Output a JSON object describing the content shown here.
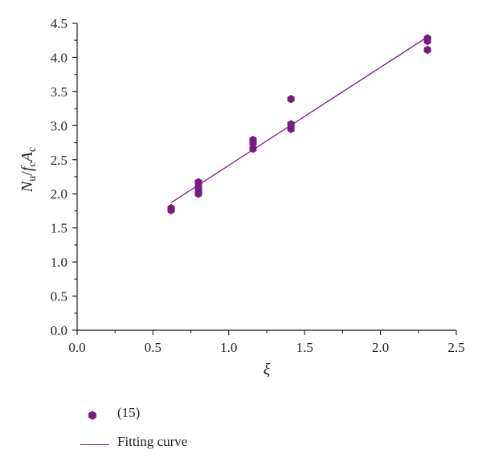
{
  "chart_data": {
    "type": "scatter",
    "xlabel": "ξ",
    "ylabel": {
      "main": "N",
      "sub_u": "u",
      "slash": "/",
      "f": "f",
      "sub_c1": "c",
      "A": "A",
      "sub_c2": "c"
    },
    "xlim": [
      0,
      2.5
    ],
    "ylim": [
      0,
      4.5
    ],
    "x_ticks": [
      "0.0",
      "0.5",
      "1.0",
      "1.5",
      "2.0",
      "2.5"
    ],
    "y_ticks": [
      "0.0",
      "0.5",
      "1.0",
      "1.5",
      "2.0",
      "2.5",
      "3.0",
      "3.5",
      "4.0",
      "4.5"
    ],
    "series": [
      {
        "name": "(15)",
        "kind": "points",
        "color": "#7b1a83",
        "points": [
          [
            0.62,
            1.76
          ],
          [
            0.62,
            1.79
          ],
          [
            0.8,
            2.0
          ],
          [
            0.8,
            2.04
          ],
          [
            0.8,
            2.1
          ],
          [
            0.8,
            2.17
          ],
          [
            1.16,
            2.66
          ],
          [
            1.16,
            2.74
          ],
          [
            1.16,
            2.79
          ],
          [
            1.41,
            2.95
          ],
          [
            1.41,
            3.02
          ],
          [
            1.41,
            3.39
          ],
          [
            2.31,
            4.11
          ],
          [
            2.31,
            4.24
          ],
          [
            2.31,
            4.28
          ]
        ]
      },
      {
        "name": "Fitting curve",
        "kind": "line",
        "color": "#7b1a83",
        "x": [
          0.62,
          2.31
        ],
        "y": [
          1.87,
          4.3
        ]
      }
    ],
    "legend_position": "bottom-left",
    "grid": false
  }
}
